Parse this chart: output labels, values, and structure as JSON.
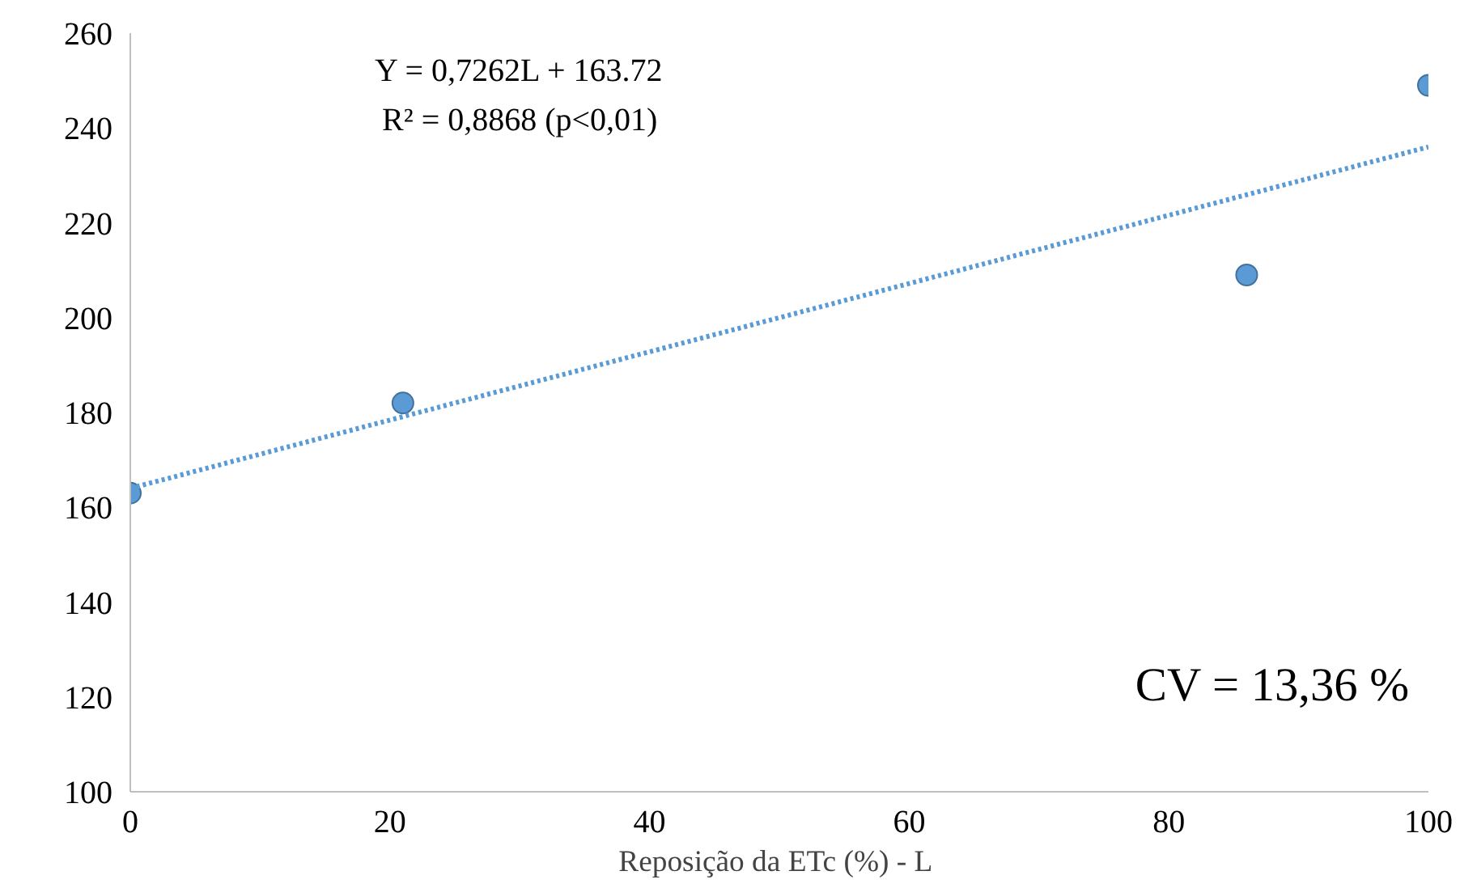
{
  "chart_data": {
    "type": "scatter",
    "xlabel": "Reposição da ETc (%)  - L",
    "series": [
      {
        "color": "#5b9bd5",
        "x": [
          0,
          21,
          86,
          100
        ],
        "values": [
          163,
          182,
          209,
          249
        ],
        "marker": "circle"
      },
      {
        "type": "line",
        "color": "#5b9bd5",
        "x": [
          0,
          100
        ],
        "values": [
          164,
          236
        ],
        "line_style": "dotted",
        "marker": "none"
      }
    ],
    "xlim": [
      0,
      100
    ],
    "ylim": [
      100,
      260
    ],
    "xticks": [
      0,
      20,
      40,
      60,
      80,
      100
    ],
    "yticks": [
      100,
      120,
      140,
      160,
      180,
      200,
      220,
      240,
      260
    ],
    "grid": false,
    "annotations": [
      "Y = 0,7262L + 163.72",
      "R² = 0,8868 (p<0,01)",
      "CV = 13,36 %"
    ]
  }
}
